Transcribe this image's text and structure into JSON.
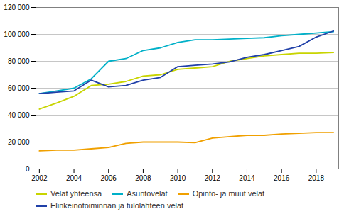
{
  "chart_data": {
    "type": "line",
    "x": [
      2002,
      2003,
      2004,
      2005,
      2006,
      2007,
      2008,
      2009,
      2010,
      2011,
      2012,
      2013,
      2014,
      2015,
      2016,
      2017,
      2018,
      2019
    ],
    "series": [
      {
        "name": "Velat yhteensä",
        "color": "#c8d400",
        "values": [
          44500,
          49000,
          54000,
          62000,
          63000,
          65000,
          69000,
          70000,
          74000,
          75000,
          76000,
          80000,
          82000,
          84000,
          85000,
          86000,
          86000,
          86500
        ]
      },
      {
        "name": "Asuntovelat",
        "color": "#00b0c8",
        "values": [
          56000,
          58000,
          60000,
          67000,
          80000,
          82000,
          88000,
          90000,
          94000,
          96000,
          96000,
          96500,
          97000,
          97500,
          99000,
          100000,
          101000,
          102000
        ]
      },
      {
        "name": "Opinto- ja muut velat",
        "color": "#f0a000",
        "values": [
          13500,
          14000,
          14000,
          15000,
          16000,
          19000,
          20000,
          20000,
          20000,
          19500,
          23000,
          24000,
          25000,
          25000,
          26000,
          26500,
          27000,
          27000
        ]
      },
      {
        "name": "Elinkeinotoiminnan ja tulolähteen velat",
        "color": "#2040a8",
        "values": [
          56000,
          57000,
          58000,
          66000,
          61000,
          62000,
          66000,
          68000,
          76000,
          77000,
          78000,
          79500,
          83000,
          85000,
          88000,
          91000,
          98000,
          102500
        ]
      }
    ],
    "xlim": [
      2001.8,
      2019.3
    ],
    "xticks": [
      2002,
      2004,
      2006,
      2008,
      2010,
      2012,
      2014,
      2016,
      2018
    ],
    "ylim": [
      0,
      120000
    ],
    "yticks": [
      0,
      {
        "value": 20000,
        "label": "20 000"
      },
      {
        "value": 40000,
        "label": "40 000"
      },
      {
        "value": 60000,
        "label": "60 000"
      },
      {
        "value": 80000,
        "label": "80 000"
      },
      {
        "value": 100000,
        "label": "100 000"
      },
      {
        "value": 120000,
        "label": "120 000"
      }
    ],
    "grid": true,
    "legend": "bottom"
  }
}
